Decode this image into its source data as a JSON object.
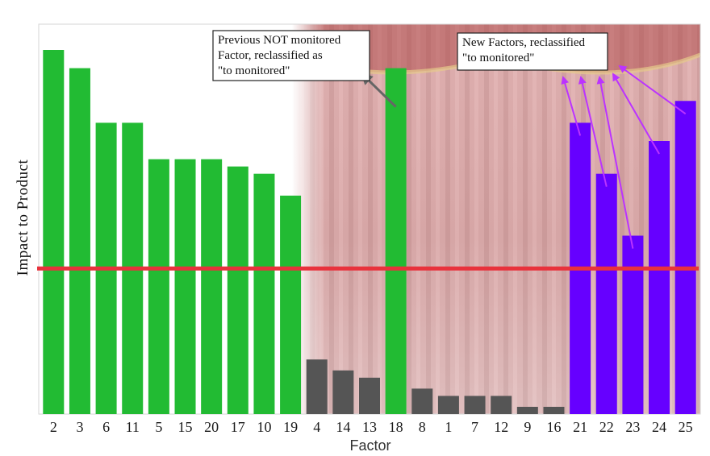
{
  "chart_data": {
    "type": "bar",
    "title": "",
    "xlabel": "Factor",
    "ylabel": "Impact  to  Product",
    "grid": false,
    "legend": "none",
    "ylim": [
      0,
      100
    ],
    "categories": [
      "2",
      "3",
      "6",
      "11",
      "5",
      "15",
      "20",
      "17",
      "10",
      "19",
      "4",
      "14",
      "13",
      "18",
      "8",
      "1",
      "7",
      "12",
      "9",
      "16",
      "21",
      "22",
      "23",
      "24",
      "25"
    ],
    "values": [
      100,
      95,
      80,
      80,
      70,
      70,
      70,
      68,
      66,
      60,
      15,
      12,
      10,
      95,
      7,
      5,
      5,
      5,
      2,
      2,
      80,
      66,
      49,
      75,
      86
    ],
    "bar_groups": [
      "monitored",
      "monitored",
      "monitored",
      "monitored",
      "monitored",
      "monitored",
      "monitored",
      "monitored",
      "monitored",
      "monitored",
      "not-monitored",
      "not-monitored",
      "not-monitored",
      "monitored",
      "not-monitored",
      "not-monitored",
      "not-monitored",
      "not-monitored",
      "not-monitored",
      "not-monitored",
      "new",
      "new",
      "new",
      "new",
      "new"
    ],
    "colors": {
      "monitored": "#22bb33",
      "not-monitored": "#555555",
      "new": "#6600ff",
      "threshold": "#e8323c",
      "arrow_grey": "#666666",
      "arrow_purple": "#bb33ff"
    },
    "threshold": 40,
    "annotations": [
      {
        "lines": [
          "Previous NOT monitored",
          "Factor, reclassified as",
          "\"to monitored\""
        ],
        "targets": [
          "18"
        ]
      },
      {
        "lines": [
          "New Factors, reclassified",
          "\"to monitored\""
        ],
        "targets": [
          "21",
          "22",
          "23",
          "24",
          "25"
        ]
      }
    ]
  }
}
